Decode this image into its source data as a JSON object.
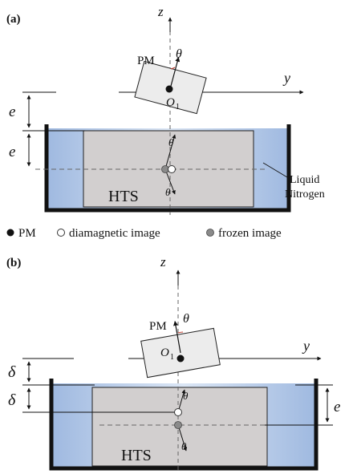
{
  "panel_a": {
    "tag": "(a)",
    "axis_z": "z",
    "axis_y": "y",
    "magnet_label": "PM",
    "center_label": "O",
    "center_sub": "1",
    "theta": "θ",
    "gap_top": "e",
    "gap_bottom": "e",
    "sample_label": "HTS",
    "coolant_line1": "Liquid",
    "coolant_line2": "Nitrogen"
  },
  "legend": {
    "pm": "PM",
    "diamagnetic": "diamagnetic image",
    "frozen": "frozen image"
  },
  "panel_b": {
    "tag": "(b)",
    "axis_z": "z",
    "axis_y": "y",
    "magnet_label": "PM",
    "center_label": "O",
    "center_sub": "1",
    "theta": "θ",
    "gap_top": "δ",
    "gap_bottom": "δ",
    "gap_right": "e",
    "sample_label": "HTS"
  },
  "colors": {
    "liquid_nitrogen": "#b6cbe8",
    "hts_block": "#d2cfcf",
    "magnet_fill": "#ececec",
    "frozen_dot": "#8a8a8a",
    "tank_wall": "#111111"
  }
}
